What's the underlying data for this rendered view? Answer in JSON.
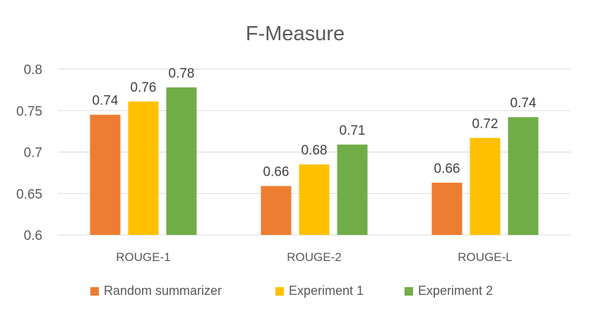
{
  "chart_data": {
    "type": "bar",
    "title": "F-Measure",
    "categories": [
      "ROUGE-1",
      "ROUGE-2",
      "ROUGE-L"
    ],
    "series": [
      {
        "name": "Random summarizer",
        "color": "#ed7d31",
        "values": [
          0.745,
          0.659,
          0.663
        ],
        "labels": [
          "0.74",
          "0.66",
          "0.66"
        ]
      },
      {
        "name": "Experiment 1",
        "color": "#ffc000",
        "values": [
          0.761,
          0.685,
          0.717
        ],
        "labels": [
          "0.76",
          "0.68",
          "0.72"
        ]
      },
      {
        "name": "Experiment 2",
        "color": "#70ad47",
        "values": [
          0.778,
          0.709,
          0.742
        ],
        "labels": [
          "0.78",
          "0.71",
          "0.74"
        ]
      }
    ],
    "yticks": [
      "0.6",
      "0.65",
      "0.7",
      "0.75",
      "0.8"
    ],
    "ylim": [
      0.6,
      0.8
    ],
    "grid": true,
    "legend": "bottom"
  }
}
